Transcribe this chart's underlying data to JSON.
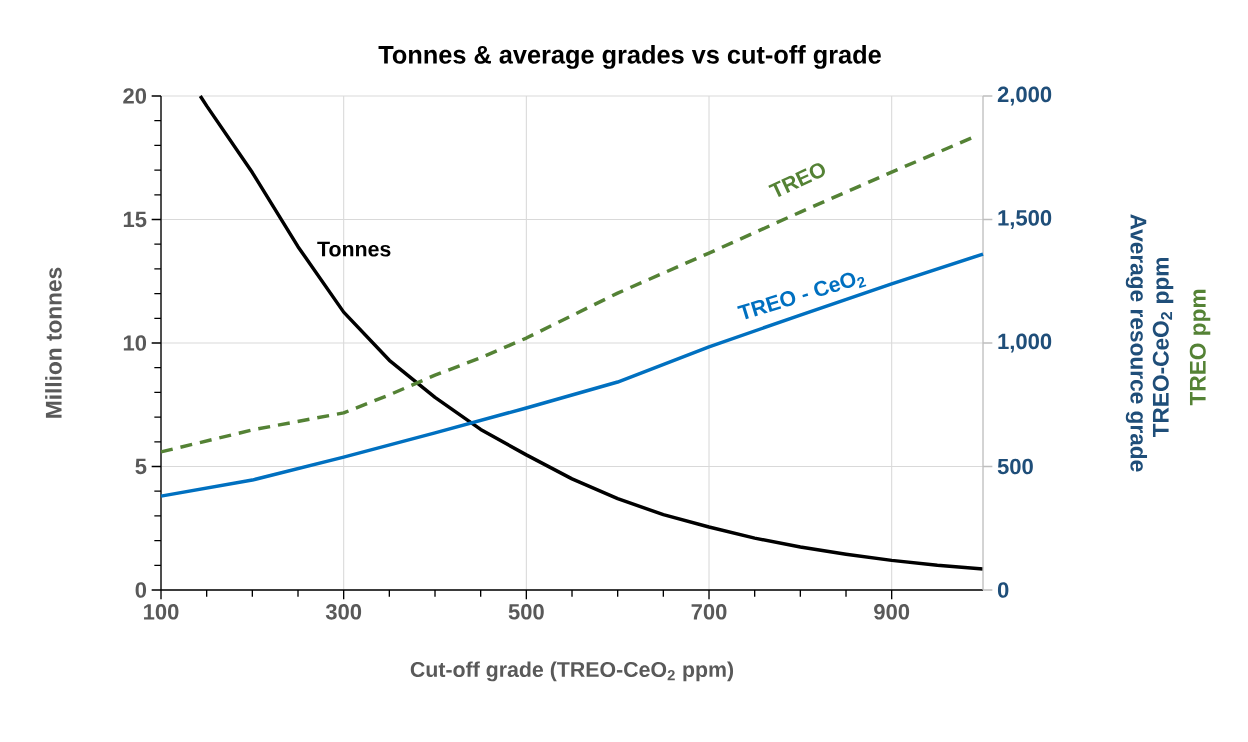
{
  "chart_data": {
    "type": "line",
    "title": "Tonnes & average grades vs cut-off grade",
    "xlabel": "**Cut-off grade** (TREO-CeO$_{2}$ ppm)",
    "ylabel": "Million tonnes",
    "y2label": "Average resource grade",
    "xlim": [
      100,
      1000
    ],
    "ylim": [
      0,
      20
    ],
    "y2lim": [
      0,
      2000
    ],
    "xticks": [
      100,
      300,
      500,
      700,
      900
    ],
    "yticks": [
      0,
      5,
      10,
      15,
      20
    ],
    "y2ticks": [
      0,
      500,
      {
        "value": 1000,
        "label": "1,000"
      },
      {
        "value": 1500,
        "label": "1,500"
      },
      {
        "value": 2000,
        "label": "2,000"
      }
    ],
    "grid": true,
    "line_style": "solid",
    "series": [
      {
        "name": "Tonnes",
        "color": "#000000",
        "x": [
          143,
          150,
          200,
          250,
          300,
          350,
          400,
          450,
          500,
          550,
          600,
          650,
          700,
          750,
          800,
          850,
          900,
          950,
          1000
        ],
        "values": [
          20,
          19.6,
          16.9,
          13.9,
          11.25,
          9.3,
          7.8,
          6.5,
          5.47,
          4.5,
          3.7,
          3.05,
          2.55,
          2.1,
          1.74,
          1.45,
          1.2,
          1.0,
          0.85
        ]
      },
      {
        "name": "TREO - CeO$_{2}$",
        "color": "#0070c0",
        "axis": "y2",
        "x": [
          100,
          200,
          300,
          400,
          500,
          600,
          700,
          800,
          900,
          1000
        ],
        "values": [
          380,
          445,
          538,
          636,
          737,
          842,
          984,
          1113,
          1239,
          1360
        ]
      },
      {
        "name": "TREO",
        "color": "#548235",
        "axis": "y2",
        "line_style": "dashed",
        "x": [
          100,
          200,
          300,
          350,
          400,
          450,
          500,
          600,
          700,
          800,
          900,
          990
        ],
        "values": [
          559,
          648,
          717,
          790,
          870,
          940,
          1020,
          1202,
          1364,
          1530,
          1692,
          1834
        ]
      }
    ],
    "annotations": [
      "TREO-CeO$_{2}$ ppm",
      "TREO ppm"
    ]
  }
}
